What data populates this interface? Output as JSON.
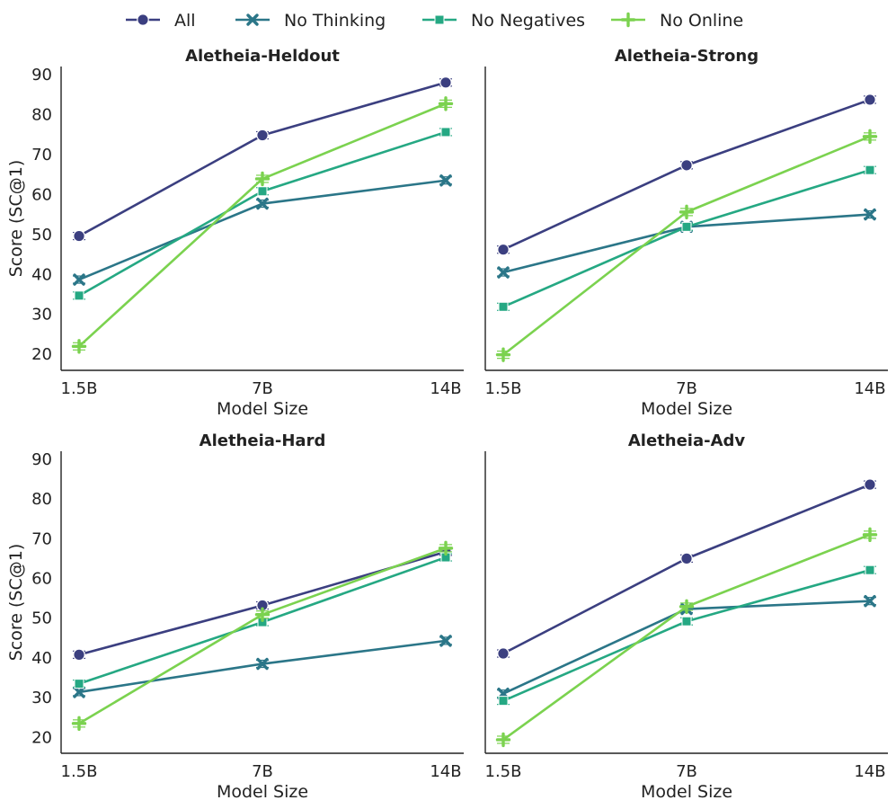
{
  "legend": {
    "entries": [
      "All",
      "No Thinking",
      "No Negatives",
      "No Online"
    ]
  },
  "colors": {
    "All": "#3b3f80",
    "No Thinking": "#2b7688",
    "No Negatives": "#25a883",
    "No Online": "#7bd24f",
    "axis": "#222222"
  },
  "markers": {
    "All": "circle",
    "No Thinking": "x",
    "No Negatives": "square",
    "No Online": "plus"
  },
  "chart_data": [
    {
      "type": "line",
      "title": "Aletheia-Heldout",
      "xlabel": "Model Size",
      "ylabel": "Score (SC@1)",
      "categories": [
        "1.5B",
        "7B",
        "14B"
      ],
      "yticks": [
        20,
        30,
        40,
        50,
        60,
        70,
        80,
        90
      ],
      "ylim": [
        16,
        92
      ],
      "series": [
        {
          "name": "All",
          "values": [
            49.6,
            74.8,
            88.0
          ]
        },
        {
          "name": "No Thinking",
          "values": [
            38.7,
            57.7,
            63.5
          ]
        },
        {
          "name": "No Negatives",
          "values": [
            34.7,
            60.8,
            75.6
          ]
        },
        {
          "name": "No Online",
          "values": [
            22.0,
            63.9,
            82.7
          ]
        }
      ]
    },
    {
      "type": "line",
      "title": "Aletheia-Strong",
      "xlabel": "Model Size",
      "ylabel": "",
      "categories": [
        "1.5B",
        "7B",
        "14B"
      ],
      "yticks": [],
      "ylim": [
        16,
        92
      ],
      "series": [
        {
          "name": "All",
          "values": [
            46.2,
            67.3,
            83.7
          ]
        },
        {
          "name": "No Thinking",
          "values": [
            40.5,
            51.9,
            55.0
          ]
        },
        {
          "name": "No Negatives",
          "values": [
            31.9,
            51.9,
            66.1
          ]
        },
        {
          "name": "No Online",
          "values": [
            19.9,
            55.6,
            74.5
          ]
        }
      ]
    },
    {
      "type": "line",
      "title": "Aletheia-Hard",
      "xlabel": "Model Size",
      "ylabel": "Score (SC@1)",
      "categories": [
        "1.5B",
        "7B",
        "14B"
      ],
      "yticks": [
        20,
        30,
        40,
        50,
        60,
        70,
        80,
        90
      ],
      "ylim": [
        16,
        92
      ],
      "series": [
        {
          "name": "All",
          "values": [
            40.8,
            53.2,
            66.7
          ]
        },
        {
          "name": "No Thinking",
          "values": [
            31.4,
            38.5,
            44.3
          ]
        },
        {
          "name": "No Negatives",
          "values": [
            33.5,
            49.0,
            65.3
          ]
        },
        {
          "name": "No Online",
          "values": [
            23.5,
            50.9,
            67.6
          ]
        }
      ]
    },
    {
      "type": "line",
      "title": "Aletheia-Adv",
      "xlabel": "Model Size",
      "ylabel": "",
      "categories": [
        "1.5B",
        "7B",
        "14B"
      ],
      "yticks": [],
      "ylim": [
        16,
        92
      ],
      "series": [
        {
          "name": "All",
          "values": [
            41.1,
            65.0,
            83.6
          ]
        },
        {
          "name": "No Thinking",
          "values": [
            31.0,
            52.3,
            54.3
          ]
        },
        {
          "name": "No Negatives",
          "values": [
            29.2,
            49.2,
            62.1
          ]
        },
        {
          "name": "No Online",
          "values": [
            19.4,
            52.9,
            71.0
          ]
        }
      ]
    }
  ]
}
